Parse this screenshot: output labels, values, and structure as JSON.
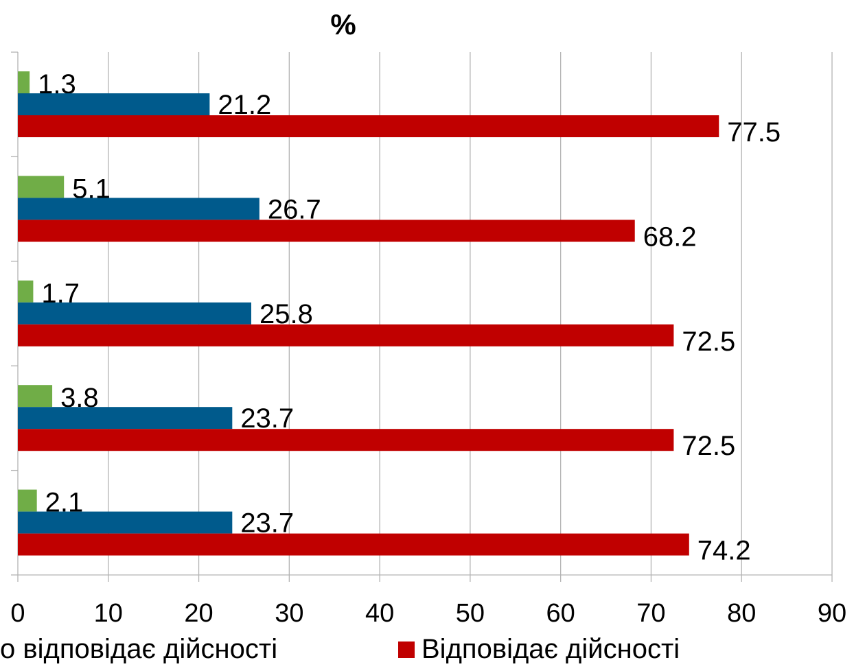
{
  "chart_data": {
    "type": "bar",
    "orientation": "horizontal",
    "title": "%",
    "xlim": [
      0,
      90
    ],
    "x_ticks": [
      "0",
      "10",
      "20",
      "30",
      "40",
      "50",
      "60",
      "70",
      "80",
      "90"
    ],
    "grid": true,
    "legend_position": "bottom",
    "categories": [
      "",
      "",
      "",
      "",
      ""
    ],
    "series": [
      {
        "name": "",
        "color": "#70ad47",
        "values": [
          1.3,
          5.1,
          1.7,
          3.8,
          2.1
        ],
        "labels": [
          "1.3",
          "5.1",
          "1.7",
          "3.8",
          "2.1"
        ]
      },
      {
        "name": "",
        "color": "#005a8c",
        "values": [
          21.2,
          26.7,
          25.8,
          23.7,
          23.7
        ],
        "labels": [
          "21.2",
          "26.7",
          "25.8",
          "23.7",
          "23.7"
        ]
      },
      {
        "name": "Відповідає дійсності",
        "color": "#c00000",
        "values": [
          77.5,
          68.2,
          72.5,
          72.5,
          74.2
        ],
        "labels": [
          "77.5",
          "68.2",
          "72.5",
          "72.5",
          "74.2"
        ]
      }
    ]
  },
  "legend": {
    "items": [
      {
        "label": "о відповідає дійсності",
        "color": "#005a8c",
        "show_swatch": false
      },
      {
        "label": "Відповідає дійсності",
        "color": "#c00000",
        "show_swatch": true
      }
    ]
  }
}
